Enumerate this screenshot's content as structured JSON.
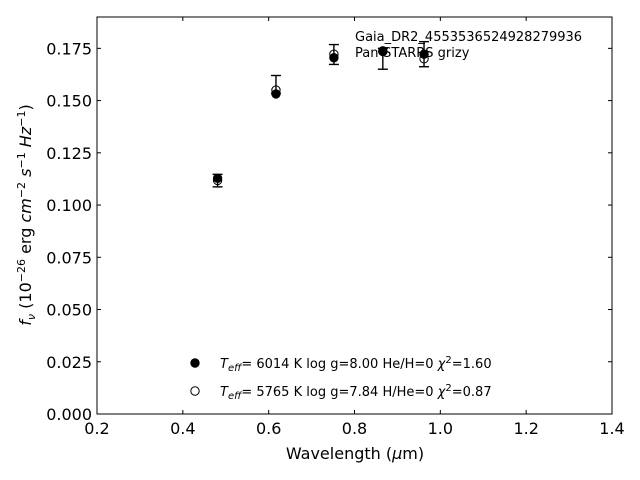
{
  "chart_data": {
    "type": "scatter",
    "xlabel": "Wavelength (μm)",
    "ylabel": "f_ν (10^-26 erg cm^-2 s^-1 Hz^-1)",
    "xlim": [
      0.2,
      1.4
    ],
    "ylim": [
      0.0,
      0.19
    ],
    "x_ticks": [
      "0.2",
      "0.4",
      "0.6",
      "0.8",
      "1.0",
      "1.2",
      "1.4"
    ],
    "y_ticks": [
      "0.000",
      "0.025",
      "0.050",
      "0.075",
      "0.100",
      "0.125",
      "0.150",
      "0.175"
    ],
    "annotation": [
      "Gaia_DR2_4553536524928279936",
      "Pan-STARRS grizy"
    ],
    "grid": false,
    "observed": {
      "x": [
        0.481,
        0.617,
        0.752,
        0.866,
        0.962
      ],
      "y": [
        0.1117,
        0.155,
        0.1718,
        0.1735,
        0.1717
      ],
      "yerr_lower": [
        0.003,
        0.0015,
        0.0045,
        0.0085,
        0.0055
      ],
      "yerr_upper": [
        0.003,
        0.007,
        0.005,
        0.0015,
        0.0065
      ]
    },
    "series": [
      {
        "name": "T_eff= 6014 K  log g=8.00  He/H=0  χ²=1.60",
        "marker": "filled-circle",
        "x": [
          0.481,
          0.617,
          0.752,
          0.866,
          0.962
        ],
        "y": [
          0.1128,
          0.1532,
          0.1705,
          0.1735,
          0.1722
        ]
      },
      {
        "name": "T_eff= 5765 K  log g=7.84  H/He=0  χ²=0.87",
        "marker": "open-circle",
        "x": [
          0.481,
          0.617,
          0.752,
          0.866,
          0.962
        ],
        "y": [
          0.1118,
          0.155,
          0.1722,
          0.1738,
          0.17
        ]
      }
    ],
    "legend": [
      {
        "marker": "filled-circle",
        "teff": "6014 K",
        "logg": "log g=8.00",
        "comp": "He/H=0",
        "chi2": "=1.60"
      },
      {
        "marker": "open-circle",
        "teff": "5765 K",
        "logg": "log g=7.84",
        "comp": "H/He=0",
        "chi2": "=0.87"
      }
    ],
    "legend_placement": "bottom-center",
    "colors": {
      "marker": "#000000",
      "axis": "#000000",
      "background": "#ffffff"
    }
  }
}
